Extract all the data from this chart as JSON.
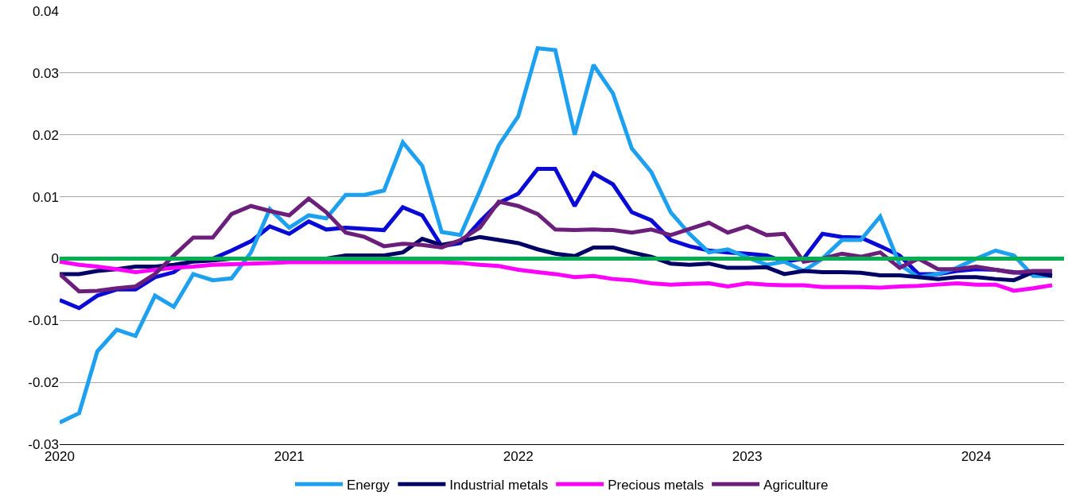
{
  "chart_data": {
    "type": "line",
    "x": [
      "2020-01",
      "2020-02",
      "2020-03",
      "2020-04",
      "2020-05",
      "2020-06",
      "2020-07",
      "2020-08",
      "2020-09",
      "2020-10",
      "2020-11",
      "2020-12",
      "2021-01",
      "2021-02",
      "2021-03",
      "2021-04",
      "2021-05",
      "2021-06",
      "2021-07",
      "2021-08",
      "2021-09",
      "2021-10",
      "2021-11",
      "2021-12",
      "2022-01",
      "2022-02",
      "2022-03",
      "2022-04",
      "2022-05",
      "2022-06",
      "2022-07",
      "2022-08",
      "2022-09",
      "2022-10",
      "2022-11",
      "2022-12",
      "2023-01",
      "2023-02",
      "2023-03",
      "2023-04",
      "2023-05",
      "2023-06",
      "2023-07",
      "2023-08",
      "2023-09",
      "2023-10",
      "2023-11",
      "2023-12",
      "2024-01",
      "2024-02",
      "2024-03",
      "2024-04",
      "2024-05"
    ],
    "series": [
      {
        "color": "#0a0ad6",
        "values": [
          -0.0067,
          -0.008,
          -0.006,
          -0.005,
          -0.005,
          -0.003,
          -0.0022,
          0.0,
          0.0,
          0.0013,
          0.0028,
          0.0052,
          0.004,
          0.006,
          0.0047,
          0.005,
          0.0048,
          0.0046,
          0.0083,
          0.007,
          0.002,
          0.0025,
          0.006,
          0.009,
          0.0105,
          0.0145,
          0.0145,
          0.0085,
          0.0138,
          0.012,
          0.0075,
          0.0062,
          0.003,
          0.002,
          0.0013,
          0.001,
          0.0008,
          0.0005,
          -0.0005,
          0.0,
          0.004,
          0.0035,
          0.0034,
          0.002,
          0.0005,
          -0.0025,
          -0.0025,
          -0.002,
          -0.0017,
          -0.0018,
          -0.0022,
          -0.0025,
          -0.0025
        ]
      },
      {
        "name": "Energy",
        "color": "#1ea0f0",
        "values": [
          -0.0265,
          -0.025,
          -0.015,
          -0.0115,
          -0.0125,
          -0.006,
          -0.0078,
          -0.0025,
          -0.0035,
          -0.0032,
          0.001,
          0.008,
          0.005,
          0.007,
          0.0065,
          0.0103,
          0.0103,
          0.011,
          0.0188,
          0.015,
          0.0043,
          0.0038,
          0.011,
          0.0183,
          0.023,
          0.034,
          0.0337,
          0.02,
          0.0313,
          0.0267,
          0.0178,
          0.014,
          0.0075,
          0.004,
          0.001,
          0.0015,
          0.0002,
          -0.001,
          -0.0005,
          -0.002,
          0.0,
          0.003,
          0.003,
          0.0068,
          -0.001,
          -0.003,
          -0.0025,
          -0.0015,
          0.0,
          0.0013,
          0.0005,
          -0.0028,
          -0.0028
        ]
      },
      {
        "name": "Industrial metals",
        "color": "#000066",
        "values": [
          -0.0025,
          -0.0025,
          -0.002,
          -0.0017,
          -0.0013,
          -0.0013,
          -0.001,
          -0.0005,
          -0.0003,
          0.0,
          0.0,
          0.0,
          0.0,
          0.0,
          0.0,
          0.0005,
          0.0005,
          0.0005,
          0.001,
          0.0032,
          0.0022,
          0.0028,
          0.0035,
          0.003,
          0.0025,
          0.0015,
          0.0008,
          0.0004,
          0.0018,
          0.0018,
          0.001,
          0.0003,
          -0.0008,
          -0.001,
          -0.0008,
          -0.0015,
          -0.0015,
          -0.0014,
          -0.0025,
          -0.002,
          -0.0022,
          -0.0022,
          -0.0023,
          -0.0027,
          -0.0027,
          -0.003,
          -0.0033,
          -0.003,
          -0.003,
          -0.0033,
          -0.0035,
          -0.0022,
          -0.0028
        ]
      },
      {
        "name": "Precious metals",
        "color": "#ff00ff",
        "values": [
          -0.0005,
          -0.001,
          -0.0013,
          -0.0017,
          -0.0022,
          -0.0018,
          -0.0015,
          -0.0013,
          -0.001,
          -0.0009,
          -0.0008,
          -0.0007,
          -0.0006,
          -0.0006,
          -0.0006,
          -0.0006,
          -0.0006,
          -0.0006,
          -0.0006,
          -0.0006,
          -0.0006,
          -0.0007,
          -0.001,
          -0.0012,
          -0.0018,
          -0.0022,
          -0.0025,
          -0.003,
          -0.0028,
          -0.0033,
          -0.0035,
          -0.004,
          -0.0042,
          -0.0041,
          -0.004,
          -0.0045,
          -0.004,
          -0.0042,
          -0.0043,
          -0.0043,
          -0.0046,
          -0.0046,
          -0.0046,
          -0.0047,
          -0.0045,
          -0.0044,
          -0.0042,
          -0.004,
          -0.0042,
          -0.0042,
          -0.0052,
          -0.0048,
          -0.0043
        ]
      },
      {
        "name": "Agriculture",
        "color": "#6b1f7b",
        "values": [
          -0.0025,
          -0.0053,
          -0.0052,
          -0.0048,
          -0.0045,
          -0.0025,
          0.0005,
          0.0034,
          0.0034,
          0.0072,
          0.0085,
          0.0077,
          0.007,
          0.0097,
          0.0075,
          0.0042,
          0.0035,
          0.002,
          0.0024,
          0.0022,
          0.0018,
          0.003,
          0.005,
          0.0092,
          0.0085,
          0.0072,
          0.0047,
          0.0046,
          0.0047,
          0.0046,
          0.0042,
          0.0047,
          0.0038,
          0.0048,
          0.0058,
          0.0042,
          0.0052,
          0.0038,
          0.004,
          -0.0005,
          0.0,
          0.0008,
          0.0003,
          0.001,
          -0.0015,
          0.0,
          -0.0017,
          -0.0017,
          -0.0013,
          -0.0018,
          -0.0023,
          -0.002,
          -0.002
        ]
      }
    ],
    "xlim": [
      "2020-01-01",
      "2024-05-20"
    ],
    "xticks": [
      "2020",
      "2021",
      "2022",
      "2023",
      "2024"
    ],
    "ylim": [
      -0.03,
      0.04
    ],
    "yticks": [
      -0.03,
      -0.02,
      -0.01,
      0,
      0.01,
      0.02,
      0.03,
      0.04
    ],
    "ref_lines": [
      {
        "axis": "y",
        "value": 0,
        "color": "#00b050"
      }
    ],
    "grid": "y",
    "legend": "bottom",
    "line_style": "solid",
    "marker": "none"
  }
}
